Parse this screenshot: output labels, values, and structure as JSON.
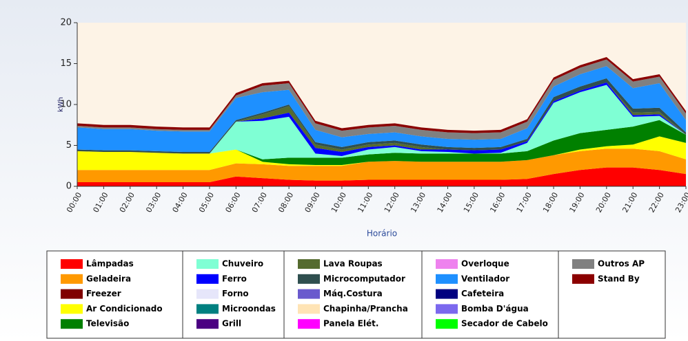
{
  "chart_data": {
    "type": "stacked_area",
    "y_label": "kWh",
    "x_label": "Horário",
    "categories": [
      "00:00",
      "01:00",
      "02:00",
      "03:00",
      "04:00",
      "05:00",
      "06:00",
      "07:00",
      "08:00",
      "09:00",
      "10:00",
      "11:00",
      "12:00",
      "13:00",
      "14:00",
      "15:00",
      "16:00",
      "17:00",
      "18:00",
      "19:00",
      "20:00",
      "21:00",
      "22:00",
      "23:00"
    ],
    "ylim": [
      0,
      20
    ],
    "yticks": [
      0,
      5,
      10,
      15,
      20
    ],
    "series": [
      {
        "name": "Lâmpadas",
        "color": "#ff0000",
        "values": [
          0.5,
          0.5,
          0.5,
          0.5,
          0.5,
          0.5,
          1.2,
          1.0,
          0.8,
          0.7,
          0.7,
          0.8,
          0.8,
          0.8,
          0.8,
          0.8,
          0.8,
          0.9,
          1.5,
          2.0,
          2.3,
          2.3,
          2.0,
          1.5
        ]
      },
      {
        "name": "Geladeira",
        "color": "#ff9900",
        "values": [
          1.5,
          1.5,
          1.5,
          1.5,
          1.5,
          1.5,
          1.6,
          1.7,
          1.7,
          1.8,
          1.8,
          2.2,
          2.3,
          2.2,
          2.2,
          2.2,
          2.2,
          2.3,
          2.3,
          2.3,
          2.3,
          2.3,
          2.3,
          1.8
        ]
      },
      {
        "name": "Freezer",
        "color": "#800000",
        "values": [
          0,
          0,
          0,
          0,
          0,
          0,
          0,
          0,
          0,
          0,
          0,
          0,
          0,
          0,
          0,
          0,
          0,
          0,
          0,
          0,
          0,
          0,
          0,
          0
        ]
      },
      {
        "name": "Ar Condicionado",
        "color": "#ffff00",
        "values": [
          2.3,
          2.2,
          2.2,
          2.1,
          2.0,
          2.0,
          1.7,
          0.3,
          0.2,
          0.1,
          0.1,
          0,
          0,
          0,
          0,
          0,
          0,
          0,
          0,
          0.2,
          0.3,
          0.5,
          1.8,
          2.0
        ]
      },
      {
        "name": "Televisão",
        "color": "#008000",
        "values": [
          0,
          0,
          0,
          0,
          0,
          0,
          0,
          0.3,
          0.8,
          0.9,
          0.9,
          0.9,
          1.0,
          1.0,
          1.0,
          1.0,
          1.0,
          1.1,
          1.8,
          2.0,
          2.0,
          2.2,
          2.0,
          1.0
        ]
      },
      {
        "name": "Chuveiro",
        "color": "#7fffd4",
        "values": [
          0,
          0,
          0,
          0,
          0,
          0,
          3.4,
          4.7,
          5.0,
          0.5,
          0.2,
          0.6,
          0.7,
          0.3,
          0.2,
          0,
          0.1,
          1.0,
          4.6,
          5.0,
          5.5,
          1.2,
          0.5,
          0
        ]
      },
      {
        "name": "Ferro",
        "color": "#0000ff",
        "values": [
          0,
          0,
          0,
          0,
          0,
          0,
          0,
          0.3,
          0.5,
          0.7,
          0.5,
          0.3,
          0.2,
          0.2,
          0.3,
          0.4,
          0.4,
          0.2,
          0.2,
          0.2,
          0.3,
          0.2,
          0.2,
          0
        ]
      },
      {
        "name": "Forno",
        "color": "#e6e6fa",
        "values": [
          0,
          0,
          0,
          0,
          0,
          0,
          0,
          0,
          0,
          0,
          0,
          0,
          0,
          0,
          0,
          0,
          0,
          0,
          0,
          0,
          0,
          0,
          0,
          0
        ]
      },
      {
        "name": "Microondas",
        "color": "#008080",
        "values": [
          0,
          0,
          0,
          0,
          0,
          0,
          0,
          0,
          0,
          0,
          0,
          0,
          0,
          0,
          0,
          0,
          0,
          0,
          0,
          0,
          0,
          0,
          0,
          0
        ]
      },
      {
        "name": "Grill",
        "color": "#4b0082",
        "values": [
          0,
          0,
          0,
          0,
          0,
          0,
          0,
          0,
          0,
          0,
          0,
          0,
          0,
          0,
          0,
          0,
          0,
          0,
          0,
          0,
          0,
          0,
          0,
          0
        ]
      },
      {
        "name": "Lava Roupas",
        "color": "#556b2f",
        "values": [
          0,
          0,
          0,
          0,
          0,
          0,
          0,
          0.5,
          0.8,
          0.4,
          0.3,
          0.3,
          0.3,
          0.3,
          0,
          0,
          0,
          0,
          0,
          0,
          0,
          0.3,
          0.3,
          0
        ]
      },
      {
        "name": "Microcomputador",
        "color": "#2f4f4f",
        "values": [
          0.2,
          0.2,
          0.2,
          0.2,
          0.2,
          0.2,
          0.2,
          0.2,
          0.2,
          0.3,
          0.3,
          0.3,
          0.3,
          0.3,
          0.3,
          0.3,
          0.3,
          0.3,
          0.5,
          0.5,
          0.5,
          0.5,
          0.5,
          0.3
        ]
      },
      {
        "name": "Máq.Costura",
        "color": "#6a5acd",
        "values": [
          0,
          0,
          0,
          0,
          0,
          0,
          0,
          0,
          0,
          0,
          0,
          0,
          0,
          0,
          0,
          0,
          0,
          0,
          0,
          0,
          0,
          0,
          0,
          0
        ]
      },
      {
        "name": "Chapinha/Prancha",
        "color": "#ffe4b5",
        "values": [
          0,
          0,
          0,
          0,
          0,
          0,
          0,
          0,
          0,
          0,
          0,
          0,
          0,
          0,
          0,
          0,
          0,
          0,
          0,
          0,
          0,
          0,
          0,
          0
        ]
      },
      {
        "name": "Panela Elét.",
        "color": "#ff00ff",
        "values": [
          0,
          0,
          0,
          0,
          0,
          0,
          0,
          0,
          0,
          0,
          0,
          0,
          0,
          0,
          0,
          0,
          0,
          0,
          0,
          0,
          0,
          0,
          0,
          0
        ]
      },
      {
        "name": "Overloque",
        "color": "#ee82ee",
        "values": [
          0,
          0,
          0,
          0,
          0,
          0,
          0,
          0,
          0,
          0,
          0,
          0,
          0,
          0,
          0,
          0,
          0,
          0,
          0,
          0,
          0,
          0,
          0,
          0
        ]
      },
      {
        "name": "Ventilador",
        "color": "#1e90ff",
        "values": [
          2.7,
          2.6,
          2.6,
          2.5,
          2.5,
          2.5,
          2.7,
          2.5,
          1.8,
          1.5,
          1.2,
          1.0,
          1.0,
          1.0,
          1.0,
          1.0,
          1.0,
          1.3,
          1.3,
          1.5,
          1.5,
          2.5,
          3.0,
          1.5
        ]
      },
      {
        "name": "Cafeteira",
        "color": "#000080",
        "values": [
          0,
          0,
          0,
          0,
          0,
          0,
          0,
          0,
          0,
          0,
          0,
          0,
          0,
          0,
          0,
          0,
          0,
          0,
          0,
          0,
          0,
          0,
          0,
          0
        ]
      },
      {
        "name": "Bomba D'água",
        "color": "#7b68ee",
        "values": [
          0,
          0,
          0,
          0,
          0,
          0,
          0,
          0,
          0,
          0,
          0,
          0,
          0,
          0,
          0,
          0,
          0,
          0,
          0,
          0,
          0,
          0,
          0,
          0
        ]
      },
      {
        "name": "Secador de Cabelo",
        "color": "#00ff00",
        "values": [
          0,
          0,
          0,
          0,
          0,
          0,
          0,
          0,
          0,
          0,
          0,
          0,
          0,
          0,
          0,
          0,
          0,
          0,
          0,
          0,
          0,
          0,
          0,
          0
        ]
      },
      {
        "name": "Outros AP",
        "color": "#808080",
        "values": [
          0.2,
          0.2,
          0.2,
          0.2,
          0.2,
          0.2,
          0.3,
          0.8,
          0.8,
          0.8,
          0.8,
          0.8,
          0.8,
          0.8,
          0.8,
          0.8,
          0.8,
          0.8,
          0.8,
          0.8,
          0.8,
          0.8,
          0.8,
          0.8
        ]
      },
      {
        "name": "Stand By",
        "color": "#8b0000",
        "values": [
          0.3,
          0.3,
          0.3,
          0.3,
          0.3,
          0.3,
          0.3,
          0.3,
          0.3,
          0.3,
          0.3,
          0.3,
          0.3,
          0.3,
          0.3,
          0.3,
          0.3,
          0.3,
          0.3,
          0.3,
          0.3,
          0.3,
          0.3,
          0.3
        ]
      }
    ]
  }
}
